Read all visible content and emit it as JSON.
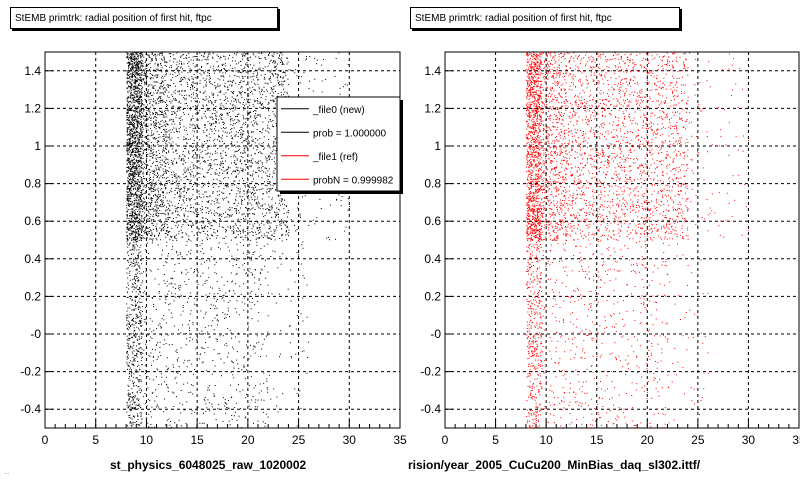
{
  "chart_data": [
    {
      "type": "scatter",
      "title": "StEMB primtrk: radial position of first hit, ftpc",
      "xlabel": "st_physics_6048025_raw_1020002",
      "ylabel": "",
      "xlim": [
        0,
        35
      ],
      "ylim": [
        -0.5,
        1.5
      ],
      "xticks": [
        "0",
        "5",
        "10",
        "15",
        "20",
        "25",
        "30",
        "35"
      ],
      "yticks": [
        "-0.4",
        "-0.2",
        "-0",
        "0.2",
        "0.4",
        "0.6",
        "0.8",
        "1",
        "1.2",
        "1.4"
      ],
      "grid": true,
      "point_color": "#000000",
      "seed": 11,
      "legend": {
        "placement": "top-right",
        "entries": [
          {
            "label": "_file0 (new)",
            "color": "#000000"
          },
          {
            "label": "prob = 1.000000",
            "color": "#000000"
          },
          {
            "label": "_file1 (ref)",
            "color": "#ff0000"
          },
          {
            "label": "probN = 0.999982",
            "color": "#ff0000"
          }
        ]
      },
      "series": [
        {
          "x_range": [
            8,
            9.5
          ],
          "y_range": [
            0.5,
            1.5
          ],
          "count": 1600
        },
        {
          "x_range": [
            9.5,
            12
          ],
          "y_range": [
            0.5,
            1.5
          ],
          "count": 900
        },
        {
          "x_range": [
            12,
            24
          ],
          "y_range": [
            0.5,
            1.5
          ],
          "count": 2400
        },
        {
          "x_range": [
            24,
            30
          ],
          "y_range": [
            0.5,
            1.5
          ],
          "count": 120
        },
        {
          "x_range": [
            8,
            9.5
          ],
          "y_range": [
            -0.5,
            0.5
          ],
          "count": 500
        },
        {
          "x_range": [
            9.5,
            22
          ],
          "y_range": [
            -0.5,
            0.5
          ],
          "count": 700
        },
        {
          "x_range": [
            22,
            26
          ],
          "y_range": [
            -0.5,
            0.5
          ],
          "count": 60
        }
      ]
    },
    {
      "type": "scatter",
      "title": "StEMB primtrk: radial position of first hit, ftpc",
      "xlabel": "rision/year_2005_CuCu200_MinBias_daq_sl302.ittf/",
      "ylabel": "",
      "xlim": [
        0,
        35
      ],
      "ylim": [
        -0.5,
        1.5
      ],
      "xticks": [
        "0",
        "5",
        "10",
        "15",
        "20",
        "25",
        "30",
        "35"
      ],
      "yticks": [
        "-0.4",
        "-0.2",
        "-0",
        "0.2",
        "0.4",
        "0.6",
        "0.8",
        "1",
        "1.2",
        "1.4"
      ],
      "grid": true,
      "point_color": "#ff0000",
      "seed": 23,
      "series": [
        {
          "x_range": [
            8,
            9.5
          ],
          "y_range": [
            0.5,
            1.5
          ],
          "count": 1200
        },
        {
          "x_range": [
            9.5,
            12
          ],
          "y_range": [
            0.5,
            1.5
          ],
          "count": 700
        },
        {
          "x_range": [
            12,
            24
          ],
          "y_range": [
            0.5,
            1.5
          ],
          "count": 1900
        },
        {
          "x_range": [
            24,
            30
          ],
          "y_range": [
            0.5,
            1.5
          ],
          "count": 90
        },
        {
          "x_range": [
            8,
            9.5
          ],
          "y_range": [
            -0.5,
            0.5
          ],
          "count": 400
        },
        {
          "x_range": [
            9.5,
            22
          ],
          "y_range": [
            -0.5,
            0.5
          ],
          "count": 550
        },
        {
          "x_range": [
            22,
            26
          ],
          "y_range": [
            -0.5,
            0.5
          ],
          "count": 50
        }
      ]
    }
  ],
  "footer_tiny": "..."
}
